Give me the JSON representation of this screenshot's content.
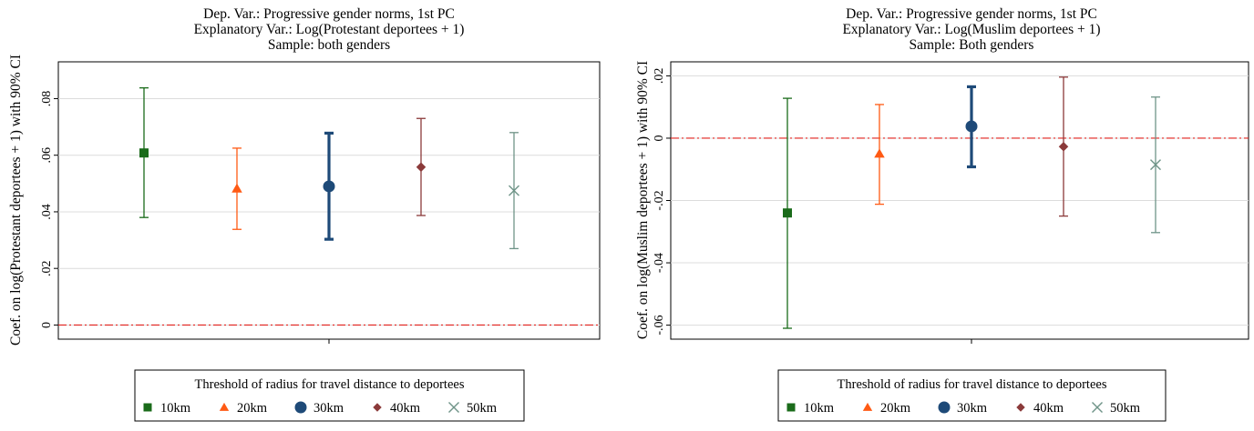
{
  "chart_data": [
    {
      "type": "scatter",
      "title_lines": [
        "Dep. Var.: Progressive gender norms, 1st PC",
        "Explanatory Var.: Log(Protestant deportees + 1)",
        "Sample: both genders"
      ],
      "ylabel": "Coef. on log(Protestant deportees + 1) with 90% CI",
      "xlabel": "",
      "ylim": [
        -0.005,
        0.093
      ],
      "yticks": [
        0,
        0.02,
        0.04,
        0.06,
        0.08
      ],
      "ytick_labels": [
        "0",
        ".02",
        ".04",
        ".06",
        ".08"
      ],
      "reference_line": 0,
      "grid": true,
      "legend_title": "Threshold of radius for travel distance to deportees",
      "legend_position": "bottom",
      "series": [
        {
          "name": "10km",
          "marker": "square",
          "color": "#1a6b1a",
          "estimate": 0.0608,
          "ci_low": 0.038,
          "ci_high": 0.0838,
          "bold": false
        },
        {
          "name": "20km",
          "marker": "triangle",
          "color": "#ff5a14",
          "estimate": 0.0482,
          "ci_low": 0.0338,
          "ci_high": 0.0625,
          "bold": false
        },
        {
          "name": "30km",
          "marker": "circle",
          "color": "#1e4a78",
          "estimate": 0.049,
          "ci_low": 0.0303,
          "ci_high": 0.0678,
          "bold": true
        },
        {
          "name": "40km",
          "marker": "diamond",
          "color": "#8b3a3a",
          "estimate": 0.0558,
          "ci_low": 0.0387,
          "ci_high": 0.073,
          "bold": false
        },
        {
          "name": "50km",
          "marker": "x",
          "color": "#6f9488",
          "estimate": 0.0475,
          "ci_low": 0.027,
          "ci_high": 0.068,
          "bold": false
        }
      ]
    },
    {
      "type": "scatter",
      "title_lines": [
        "Dep. Var.: Progressive gender norms, 1st PC",
        "Explanatory Var.: Log(Muslim deportees + 1)",
        "Sample: Both genders"
      ],
      "ylabel": "Coef. on log(Muslim deportees + 1) with 90% CI",
      "xlabel": "",
      "ylim": [
        -0.0645,
        0.0245
      ],
      "yticks": [
        -0.06,
        -0.04,
        -0.02,
        0,
        0.02
      ],
      "ytick_labels": [
        "-.06",
        "-.04",
        "-.02",
        "0",
        ".02"
      ],
      "reference_line": 0,
      "grid": true,
      "legend_title": "Threshold of radius for travel distance to deportees",
      "legend_position": "bottom",
      "series": [
        {
          "name": "10km",
          "marker": "square",
          "color": "#1a6b1a",
          "estimate": -0.024,
          "ci_low": -0.061,
          "ci_high": 0.0128,
          "bold": false
        },
        {
          "name": "20km",
          "marker": "triangle",
          "color": "#ff5a14",
          "estimate": -0.005,
          "ci_low": -0.0212,
          "ci_high": 0.0108,
          "bold": false
        },
        {
          "name": "30km",
          "marker": "circle",
          "color": "#1e4a78",
          "estimate": 0.0038,
          "ci_low": -0.0092,
          "ci_high": 0.0165,
          "bold": true
        },
        {
          "name": "40km",
          "marker": "diamond",
          "color": "#8b3a3a",
          "estimate": -0.0027,
          "ci_low": -0.025,
          "ci_high": 0.0196,
          "bold": false
        },
        {
          "name": "50km",
          "marker": "x",
          "color": "#6f9488",
          "estimate": -0.0085,
          "ci_low": -0.0303,
          "ci_high": 0.0132,
          "bold": false
        }
      ]
    }
  ]
}
